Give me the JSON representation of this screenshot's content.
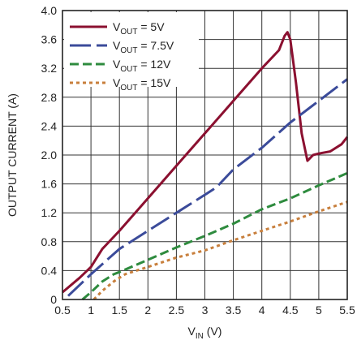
{
  "chart_data": {
    "type": "line",
    "xlabel": {
      "base": "V",
      "sub": "IN",
      "suffix": " (V)"
    },
    "ylabel": "OUTPUT CURRENT (A)",
    "xlim": [
      0.5,
      5.5
    ],
    "ylim": [
      0,
      4.0
    ],
    "x_ticks": [
      "0.5",
      "1",
      "1.5",
      "2",
      "2.5",
      "3",
      "3.5",
      "4",
      "4.5",
      "5",
      "5.5"
    ],
    "y_ticks": [
      "0",
      "0.4",
      "0.8",
      "1.2",
      "1.6",
      "2.0",
      "2.4",
      "2.8",
      "3.2",
      "3.6",
      "4.0"
    ],
    "grid": true,
    "legend_position": "top-left",
    "series": [
      {
        "legend": {
          "base": "V",
          "sub": "OUT",
          "suffix": " = 5V"
        },
        "color": "#8b1030",
        "dash": "solid",
        "points": [
          [
            0.5,
            0.1
          ],
          [
            0.8,
            0.3
          ],
          [
            1.0,
            0.45
          ],
          [
            1.2,
            0.7
          ],
          [
            1.5,
            0.95
          ],
          [
            2.0,
            1.4
          ],
          [
            2.5,
            1.85
          ],
          [
            3.0,
            2.3
          ],
          [
            3.5,
            2.75
          ],
          [
            4.0,
            3.2
          ],
          [
            4.3,
            3.45
          ],
          [
            4.4,
            3.65
          ],
          [
            4.45,
            3.7
          ],
          [
            4.5,
            3.6
          ],
          [
            4.6,
            3.0
          ],
          [
            4.7,
            2.3
          ],
          [
            4.8,
            1.92
          ],
          [
            4.9,
            2.0
          ],
          [
            5.0,
            2.02
          ],
          [
            5.2,
            2.05
          ],
          [
            5.4,
            2.15
          ],
          [
            5.5,
            2.25
          ]
        ]
      },
      {
        "legend": {
          "base": "V",
          "sub": "OUT",
          "suffix": " = 7.5V"
        },
        "color": "#3b4b9a",
        "dash": "long",
        "points": [
          [
            0.6,
            0.05
          ],
          [
            1.0,
            0.35
          ],
          [
            1.5,
            0.7
          ],
          [
            2.0,
            0.95
          ],
          [
            2.5,
            1.2
          ],
          [
            3.0,
            1.45
          ],
          [
            3.2,
            1.55
          ],
          [
            3.5,
            1.8
          ],
          [
            4.0,
            2.1
          ],
          [
            4.5,
            2.45
          ],
          [
            5.0,
            2.75
          ],
          [
            5.5,
            3.05
          ]
        ]
      },
      {
        "legend": {
          "base": "V",
          "sub": "OUT",
          "suffix": " = 12V"
        },
        "color": "#2e8b3e",
        "dash": "medium",
        "points": [
          [
            0.85,
            0.0
          ],
          [
            1.0,
            0.1
          ],
          [
            1.2,
            0.25
          ],
          [
            1.4,
            0.35
          ],
          [
            1.5,
            0.38
          ],
          [
            2.0,
            0.55
          ],
          [
            2.5,
            0.72
          ],
          [
            3.0,
            0.88
          ],
          [
            3.5,
            1.05
          ],
          [
            4.0,
            1.25
          ],
          [
            4.5,
            1.4
          ],
          [
            5.0,
            1.58
          ],
          [
            5.5,
            1.75
          ]
        ]
      },
      {
        "legend": {
          "base": "V",
          "sub": "OUT",
          "suffix": " = 15V"
        },
        "color": "#c87f3c",
        "dash": "short",
        "points": [
          [
            1.05,
            0.0
          ],
          [
            1.2,
            0.12
          ],
          [
            1.4,
            0.25
          ],
          [
            1.6,
            0.35
          ],
          [
            2.0,
            0.45
          ],
          [
            2.5,
            0.58
          ],
          [
            3.0,
            0.68
          ],
          [
            3.5,
            0.82
          ],
          [
            4.0,
            0.95
          ],
          [
            4.5,
            1.08
          ],
          [
            5.0,
            1.22
          ],
          [
            5.5,
            1.35
          ]
        ]
      }
    ]
  }
}
